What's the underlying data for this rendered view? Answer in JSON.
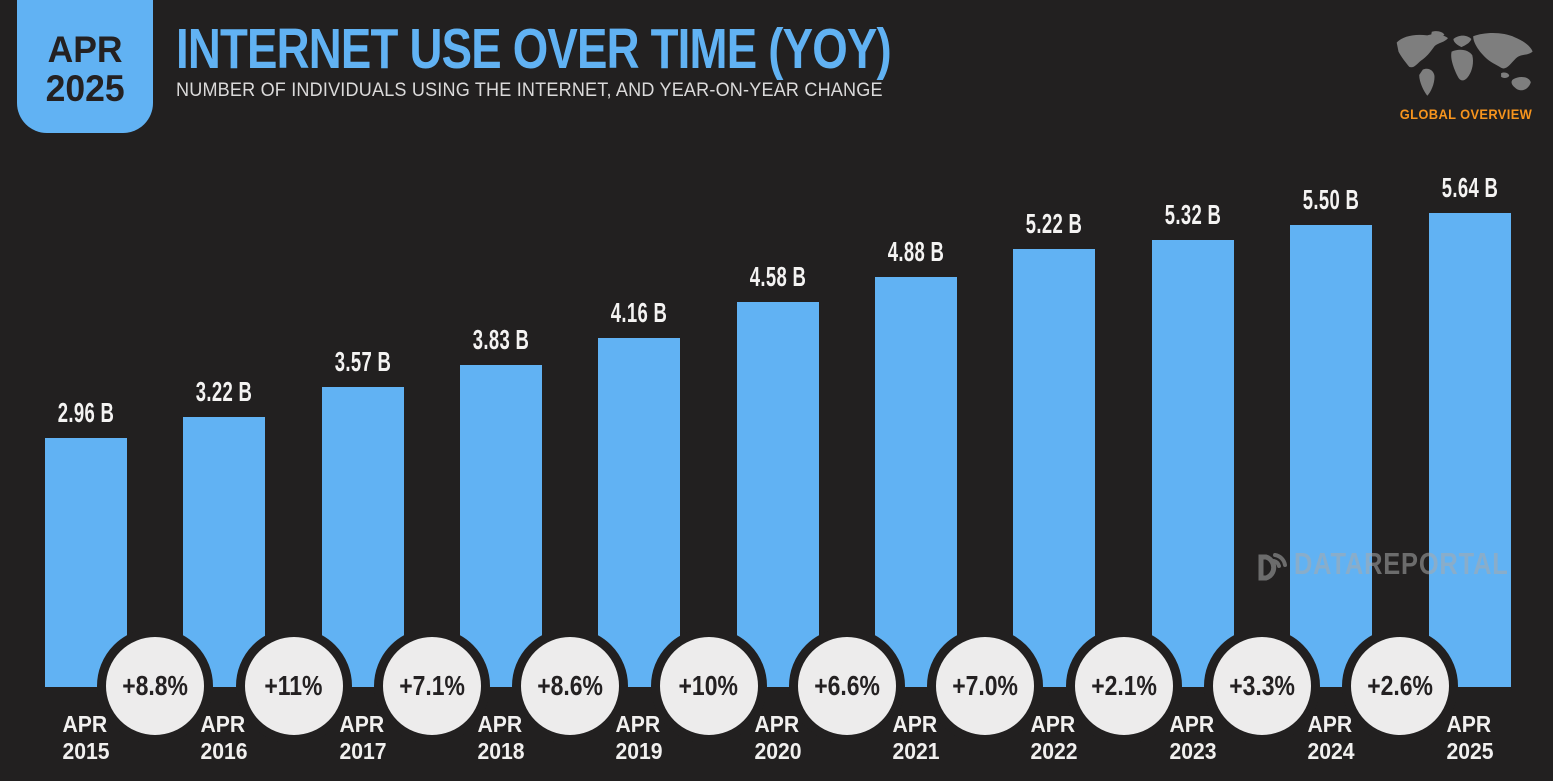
{
  "header": {
    "badge": {
      "line1": "APR",
      "line2": "2025"
    },
    "title": "INTERNET USE OVER TIME (YOY)",
    "subtitle": "NUMBER OF INDIVIDUALS USING THE INTERNET, AND YEAR-ON-YEAR CHANGE",
    "region_label": "GLOBAL OVERVIEW"
  },
  "watermark": {
    "text": "DATAREPORTAL"
  },
  "colors": {
    "background": "#222020",
    "bar_blue": "#61B2F3",
    "accent_orange": "#F7941D",
    "circle_fill": "#EDECEC",
    "map_gray": "#7E7E7E",
    "text_light": "#F1F0EF",
    "text_dark": "#242122"
  },
  "chart_data": {
    "type": "bar",
    "title": "INTERNET USE OVER TIME (YOY)",
    "subtitle": "NUMBER OF INDIVIDUALS USING THE INTERNET, AND YEAR-ON-YEAR CHANGE",
    "unit": "billions of individuals using the internet",
    "categories": [
      "APR 2015",
      "APR 2016",
      "APR 2017",
      "APR 2018",
      "APR 2019",
      "APR 2020",
      "APR 2021",
      "APR 2022",
      "APR 2023",
      "APR 2024",
      "APR 2025"
    ],
    "values": [
      2.96,
      3.22,
      3.57,
      3.83,
      4.16,
      4.58,
      4.88,
      5.22,
      5.32,
      5.5,
      5.64
    ],
    "value_labels": [
      "2.96 B",
      "3.22 B",
      "3.57 B",
      "3.83 B",
      "4.16 B",
      "4.58 B",
      "4.88 B",
      "5.22 B",
      "5.32 B",
      "5.50 B",
      "5.64 B"
    ],
    "yoy_change_labels": [
      "+8.8%",
      "+11%",
      "+7.1%",
      "+8.6%",
      "+10%",
      "+6.6%",
      "+7.0%",
      "+2.1%",
      "+3.3%",
      "+2.6%"
    ],
    "ylim": [
      0,
      6
    ],
    "grid": false,
    "legend": false,
    "bar_color": "#61B2F3"
  }
}
